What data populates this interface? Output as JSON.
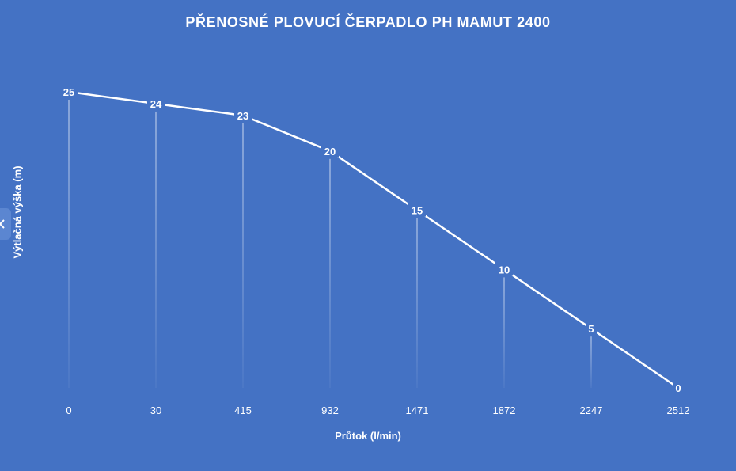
{
  "chart_data": {
    "type": "line",
    "title": "PŘENOSNÉ PLOVUCÍ ČERPADLO PH MAMUT 2400",
    "xlabel": "Průtok (l/min)",
    "ylabel": "Výtlačná výška (m)",
    "categories": [
      "0",
      "30",
      "415",
      "932",
      "1471",
      "1872",
      "2247",
      "2512"
    ],
    "series": [
      {
        "values": [
          25,
          24,
          23,
          20,
          15,
          10,
          5,
          0
        ]
      }
    ],
    "ylim": [
      0,
      25
    ],
    "grid": false,
    "drop_lines": true,
    "data_labels": true,
    "line_color": "#FFFFFF",
    "background_color": "#4472C4"
  },
  "icons": {
    "side_tab": "chevron-left-icon"
  }
}
